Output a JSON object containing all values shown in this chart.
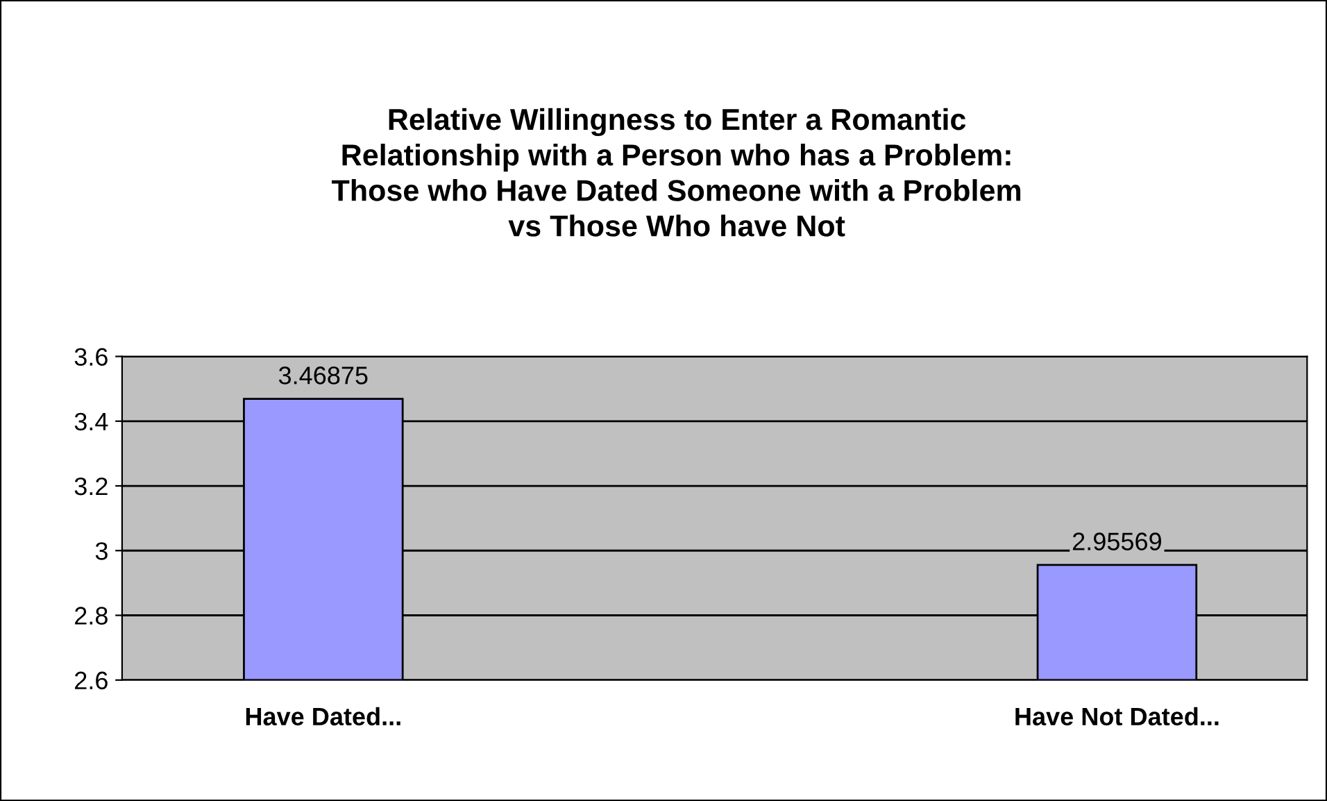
{
  "chart_data": {
    "type": "bar",
    "title": "Relative Willingness to Enter a Romantic\nRelationship with a Person who has a Problem:\nThose who Have Dated Someone with a Problem\nvs Those Who have Not",
    "categories": [
      "Have Dated...",
      "Have Not Dated..."
    ],
    "values": [
      3.46875,
      2.95569
    ],
    "color": "#9999ff",
    "data_labels": true,
    "ylim": [
      2.6,
      3.6
    ],
    "yticks": [
      2.6,
      2.8,
      3,
      3.2,
      3.4,
      3.6
    ],
    "grid": "y",
    "legend": false
  }
}
